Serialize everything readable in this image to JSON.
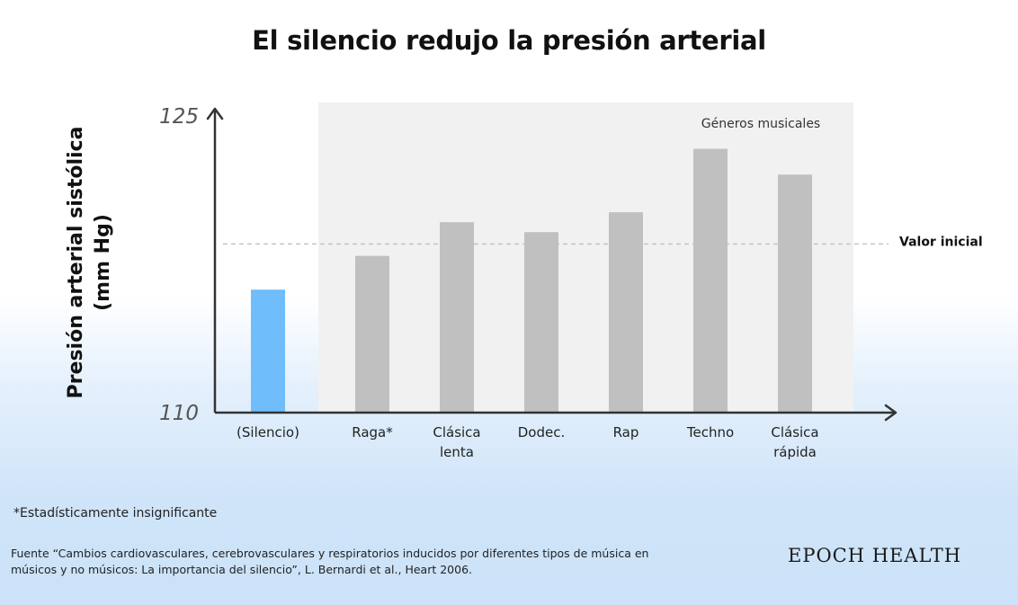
{
  "title": "El silencio redujo la presión arterial",
  "colors": {
    "silence_bar": "#70bdfb",
    "music_bar": "#c0c0c0",
    "genre_panel": "#f1f1f1",
    "axis": "#333333",
    "reference_line": "#c4c4c4"
  },
  "chart_data": {
    "type": "bar",
    "title": "El silencio redujo la presión arterial",
    "ylabel_line1": "Presión arterial sistólica",
    "ylabel_line2": "(mm Hg)",
    "ylim": [
      110,
      125
    ],
    "ytick_labels": [
      "125",
      "110"
    ],
    "grid": false,
    "categories": [
      [
        "(Silencio)"
      ],
      [
        "Raga*"
      ],
      [
        "Clásica",
        "lenta"
      ],
      [
        "Dodec."
      ],
      [
        "Rap"
      ],
      [
        "Techno"
      ],
      [
        "Clásica",
        "rápida"
      ]
    ],
    "values": [
      116.2,
      117.9,
      119.6,
      119.1,
      120.1,
      123.3,
      122.0
    ],
    "group_label": "Géneros musicales",
    "reference_line": {
      "label": "Valor inicial",
      "value": 118.5
    }
  },
  "footnote": "*Estadísticamente insignificante",
  "source": {
    "line1": "Fuente “Cambios cardiovasculares, cerebrovasculares y respiratorios inducidos por diferentes tipos de música en",
    "line2": "músicos y no músicos: La importancia del silencio”, L. Bernardi et al., Heart 2006."
  },
  "brand": "EPOCH HEALTH"
}
